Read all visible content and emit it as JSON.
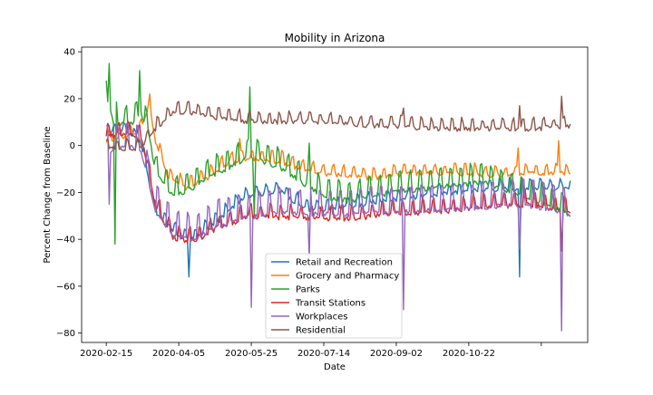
{
  "chart_data": {
    "type": "line",
    "title": "Mobility in Arizona",
    "xlabel": "Date",
    "ylabel": "Percent Change from Baseline",
    "x_start": "2020-02-15",
    "x_end": "2020-12-31",
    "xlim": [
      "2020-01-29",
      "2021-01-12"
    ],
    "ylim": [
      -84,
      42
    ],
    "x_tick_labels": [
      "2020-02-15",
      "2020-04-05",
      "2020-05-25",
      "2020-07-14",
      "2020-09-02",
      "2020-10-22",
      ""
    ],
    "x_tick_dates": [
      "2020-02-15",
      "2020-04-05",
      "2020-05-25",
      "2020-07-14",
      "2020-09-02",
      "2020-10-22",
      "2020-12-11"
    ],
    "y_ticks": [
      40,
      20,
      0,
      -20,
      -40,
      -60,
      -80
    ],
    "grid": false,
    "legend_position": "lower-center",
    "series": [
      {
        "name": "Retail and Recreation",
        "color": "#1f77b4",
        "weekday_amp": 3,
        "weekday_phase": 5,
        "keypoints": [
          [
            "2020-02-15",
            6
          ],
          [
            "2020-03-01",
            7
          ],
          [
            "2020-03-10",
            2
          ],
          [
            "2020-03-20",
            -28
          ],
          [
            "2020-04-01",
            -35
          ],
          [
            "2020-04-10",
            -40
          ],
          [
            "2020-04-18",
            -38
          ],
          [
            "2020-05-01",
            -32
          ],
          [
            "2020-05-15",
            -24
          ],
          [
            "2020-05-25",
            -20
          ],
          [
            "2020-06-15",
            -19
          ],
          [
            "2020-07-01",
            -26
          ],
          [
            "2020-07-14",
            -27
          ],
          [
            "2020-08-01",
            -25
          ],
          [
            "2020-09-01",
            -22
          ],
          [
            "2020-10-01",
            -20
          ],
          [
            "2020-11-01",
            -18
          ],
          [
            "2020-12-01",
            -17
          ],
          [
            "2020-12-31",
            -18
          ]
        ],
        "spikes": [
          [
            "2020-04-12",
            -56
          ],
          [
            "2020-11-26",
            -56
          ]
        ]
      },
      {
        "name": "Grocery and Pharmacy",
        "color": "#ff7f0e",
        "weekday_amp": 3,
        "weekday_phase": 2,
        "keypoints": [
          [
            "2020-02-15",
            3
          ],
          [
            "2020-03-01",
            5
          ],
          [
            "2020-03-10",
            8
          ],
          [
            "2020-03-15",
            17
          ],
          [
            "2020-03-20",
            3
          ],
          [
            "2020-03-28",
            -12
          ],
          [
            "2020-04-10",
            -17
          ],
          [
            "2020-04-25",
            -13
          ],
          [
            "2020-05-10",
            -6
          ],
          [
            "2020-05-25",
            -5
          ],
          [
            "2020-06-15",
            -6
          ],
          [
            "2020-07-01",
            -10
          ],
          [
            "2020-07-14",
            -11
          ],
          [
            "2020-08-15",
            -13
          ],
          [
            "2020-09-15",
            -11
          ],
          [
            "2020-10-15",
            -11
          ],
          [
            "2020-11-15",
            -12
          ],
          [
            "2020-12-01",
            -11
          ],
          [
            "2020-12-31",
            -11
          ]
        ],
        "spikes": [
          [
            "2020-03-16",
            22
          ],
          [
            "2020-05-17",
            3
          ],
          [
            "2020-11-25",
            -1
          ],
          [
            "2020-12-23",
            2
          ]
        ]
      },
      {
        "name": "Parks",
        "color": "#2ca02c",
        "weekday_amp": 6,
        "weekday_phase": 6,
        "keypoints": [
          [
            "2020-02-15",
            22
          ],
          [
            "2020-02-20",
            12
          ],
          [
            "2020-03-01",
            10
          ],
          [
            "2020-03-10",
            15
          ],
          [
            "2020-03-15",
            8
          ],
          [
            "2020-03-20",
            -10
          ],
          [
            "2020-04-01",
            -20
          ],
          [
            "2020-04-10",
            -18
          ],
          [
            "2020-05-01",
            -10
          ],
          [
            "2020-05-25",
            -3
          ],
          [
            "2020-06-15",
            -8
          ],
          [
            "2020-07-01",
            -15
          ],
          [
            "2020-07-14",
            -20
          ],
          [
            "2020-08-01",
            -22
          ],
          [
            "2020-09-01",
            -18
          ],
          [
            "2020-10-01",
            -16
          ],
          [
            "2020-11-01",
            -14
          ],
          [
            "2020-12-01",
            -20
          ],
          [
            "2020-12-31",
            -28
          ]
        ],
        "spikes": [
          [
            "2020-02-17",
            35
          ],
          [
            "2020-02-21",
            -42
          ],
          [
            "2020-03-09",
            32
          ],
          [
            "2020-05-24",
            25
          ],
          [
            "2020-05-27",
            -30
          ],
          [
            "2020-07-04",
            1
          ]
        ]
      },
      {
        "name": "Transit Stations",
        "color": "#d62728",
        "weekday_amp": 4,
        "weekday_phase": 1,
        "keypoints": [
          [
            "2020-02-15",
            5
          ],
          [
            "2020-03-01",
            6
          ],
          [
            "2020-03-10",
            5
          ],
          [
            "2020-03-20",
            -25
          ],
          [
            "2020-04-01",
            -38
          ],
          [
            "2020-04-15",
            -40
          ],
          [
            "2020-05-01",
            -34
          ],
          [
            "2020-05-25",
            -29
          ],
          [
            "2020-07-01",
            -30
          ],
          [
            "2020-08-01",
            -30
          ],
          [
            "2020-09-01",
            -28
          ],
          [
            "2020-10-01",
            -27
          ],
          [
            "2020-11-01",
            -25
          ],
          [
            "2020-12-01",
            -24
          ],
          [
            "2020-12-31",
            -27
          ]
        ],
        "spikes": [
          [
            "2020-12-25",
            -45
          ]
        ]
      },
      {
        "name": "Workplaces",
        "color": "#9467bd",
        "weekday_amp": 8,
        "weekday_phase": 0,
        "keypoints": [
          [
            "2020-02-15",
            0
          ],
          [
            "2020-03-01",
            2
          ],
          [
            "2020-03-10",
            0
          ],
          [
            "2020-03-20",
            -25
          ],
          [
            "2020-04-01",
            -36
          ],
          [
            "2020-04-15",
            -38
          ],
          [
            "2020-05-01",
            -32
          ],
          [
            "2020-05-25",
            -28
          ],
          [
            "2020-06-15",
            -26
          ],
          [
            "2020-07-01",
            -27
          ],
          [
            "2020-08-01",
            -27
          ],
          [
            "2020-09-01",
            -26
          ],
          [
            "2020-10-01",
            -25
          ],
          [
            "2020-11-01",
            -24
          ],
          [
            "2020-12-01",
            -23
          ],
          [
            "2020-12-31",
            -27
          ]
        ],
        "spikes": [
          [
            "2020-02-17",
            -25
          ],
          [
            "2020-05-25",
            -69
          ],
          [
            "2020-07-04",
            -48
          ],
          [
            "2020-09-07",
            -70
          ],
          [
            "2020-11-26",
            -44
          ],
          [
            "2020-12-25",
            -79
          ]
        ]
      },
      {
        "name": "Residential",
        "color": "#8c564b",
        "weekday_amp": 3,
        "weekday_phase": 0,
        "keypoints": [
          [
            "2020-02-15",
            0
          ],
          [
            "2020-03-01",
            -1
          ],
          [
            "2020-03-10",
            0
          ],
          [
            "2020-03-20",
            8
          ],
          [
            "2020-04-01",
            15
          ],
          [
            "2020-04-15",
            15
          ],
          [
            "2020-05-01",
            13
          ],
          [
            "2020-05-25",
            11
          ],
          [
            "2020-07-01",
            11
          ],
          [
            "2020-07-14",
            11
          ],
          [
            "2020-08-01",
            10
          ],
          [
            "2020-09-01",
            9
          ],
          [
            "2020-10-01",
            8
          ],
          [
            "2020-11-01",
            8
          ],
          [
            "2020-12-01",
            8
          ],
          [
            "2020-12-31",
            9
          ]
        ],
        "spikes": [
          [
            "2020-09-07",
            16
          ],
          [
            "2020-11-26",
            17
          ],
          [
            "2020-12-25",
            21
          ]
        ]
      }
    ]
  }
}
